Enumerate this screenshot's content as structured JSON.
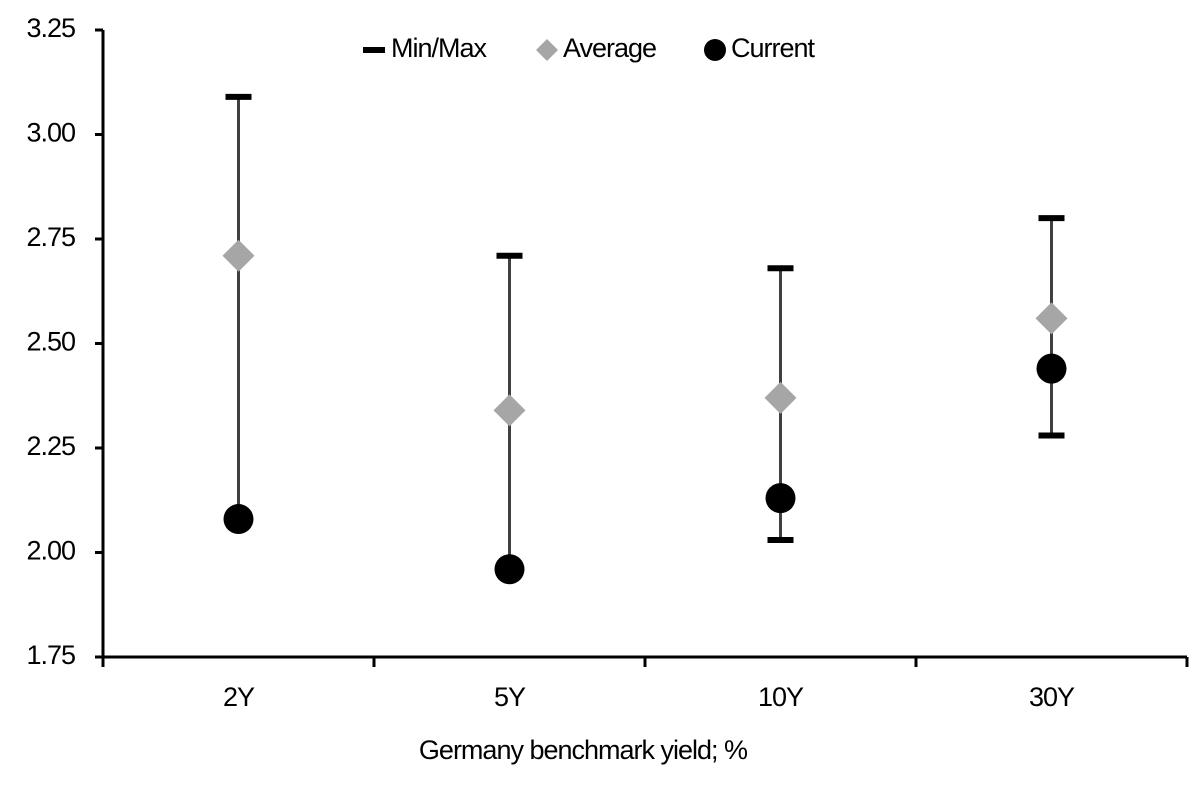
{
  "chart_data": {
    "type": "range-dot",
    "x_label": "Germany benchmark yield; %",
    "categories": [
      "2Y",
      "5Y",
      "10Y",
      "30Y"
    ],
    "series": [
      {
        "name": "Min/Max",
        "color": "#000000",
        "line_color": "#404040",
        "min": [
          2.08,
          1.96,
          2.03,
          2.28
        ],
        "max": [
          3.09,
          2.71,
          2.68,
          2.8
        ]
      },
      {
        "name": "Average",
        "color": "#a6a6a6",
        "values": [
          2.71,
          2.34,
          2.37,
          2.56
        ]
      },
      {
        "name": "Current",
        "color": "#000000",
        "values": [
          2.08,
          1.96,
          2.13,
          2.44
        ]
      }
    ],
    "ylim": [
      1.75,
      3.25
    ],
    "yticks": [
      1.75,
      {
        "value": 2.0,
        "label": "2.00"
      },
      2.25,
      {
        "value": 2.5,
        "label": "2.50"
      },
      2.75,
      {
        "value": 3.0,
        "label": "3.00"
      },
      3.25
    ],
    "legend": "top"
  }
}
